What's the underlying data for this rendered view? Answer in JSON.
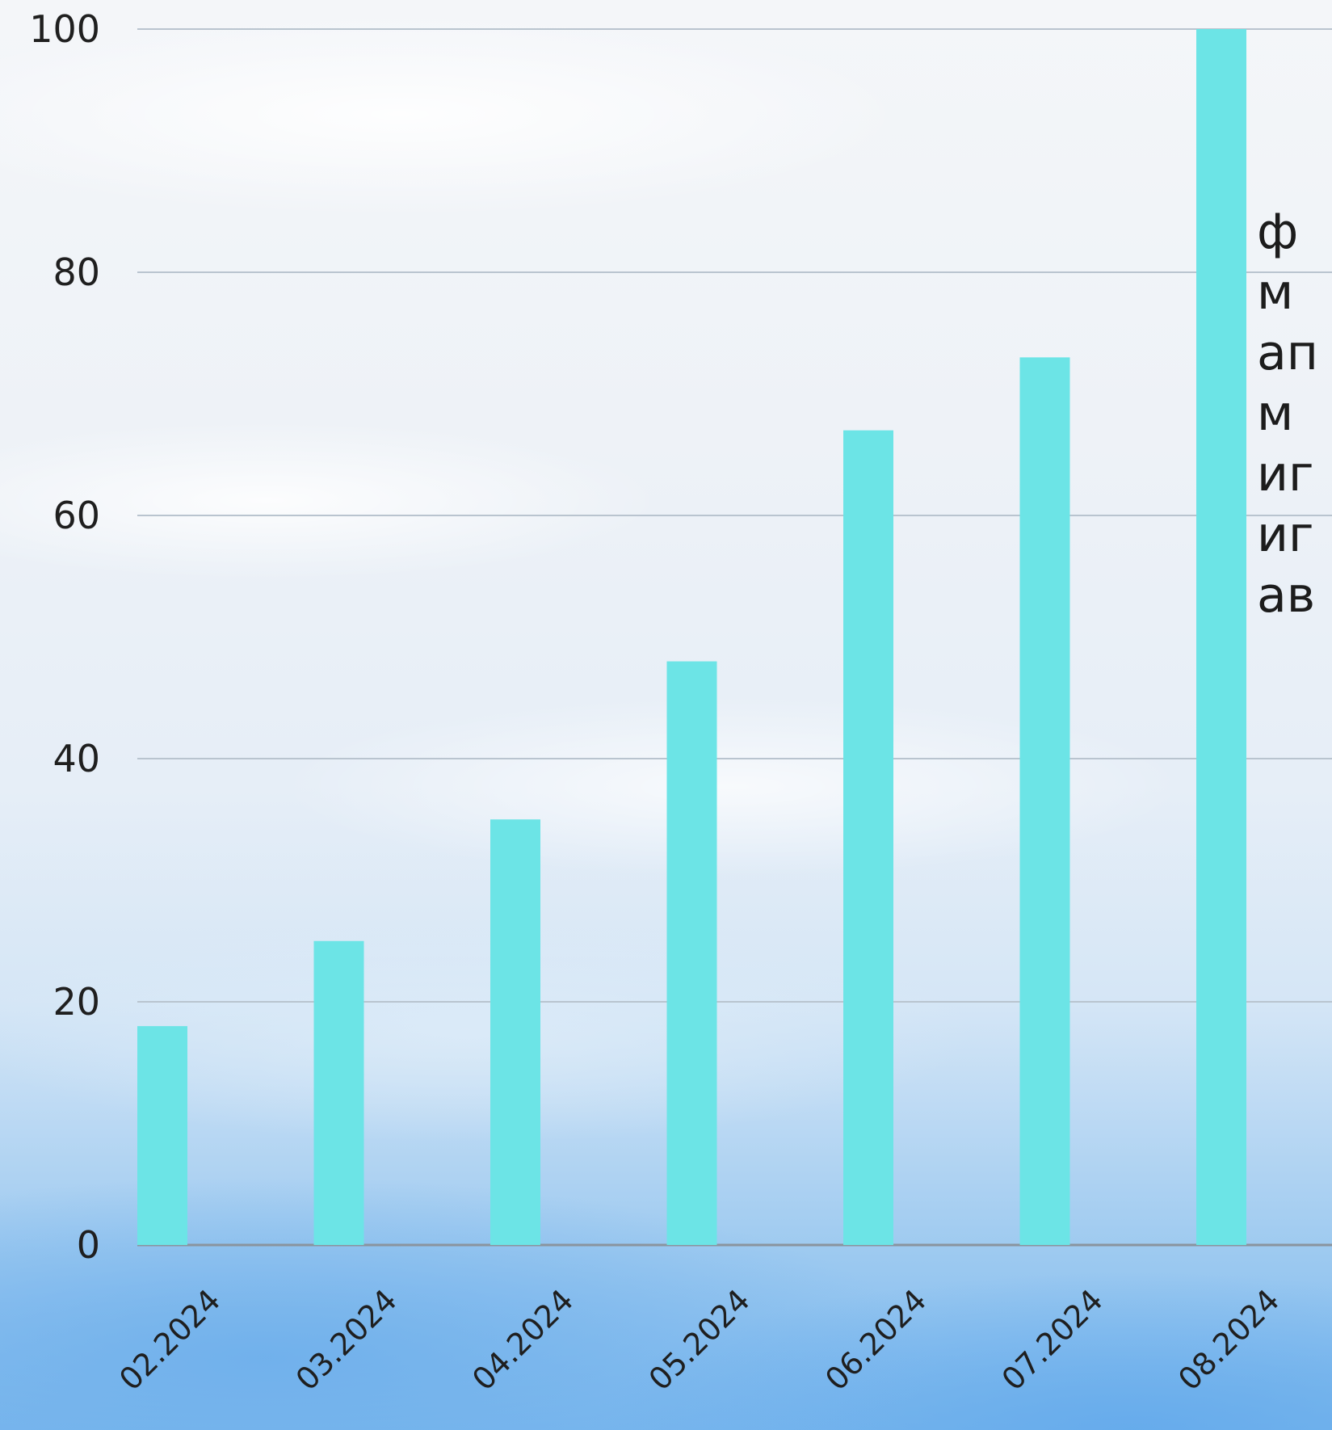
{
  "chart_data": {
    "type": "bar",
    "title": "",
    "xlabel": "",
    "ylabel": "",
    "categories": [
      "02.2024",
      "03.2024",
      "04.2024",
      "05.2024",
      "06.2024",
      "07.2024",
      "08.2024"
    ],
    "values": [
      18,
      25,
      35,
      48,
      67,
      73,
      100
    ],
    "ylim": [
      0,
      100
    ],
    "yticks": [
      0,
      20,
      40,
      60,
      80,
      100
    ],
    "grid": true,
    "bar_color": "#6ce4e6"
  },
  "side_text": {
    "lines": [
      "ф",
      "м",
      "ап",
      "м",
      "иг",
      "иг",
      "ав"
    ]
  }
}
